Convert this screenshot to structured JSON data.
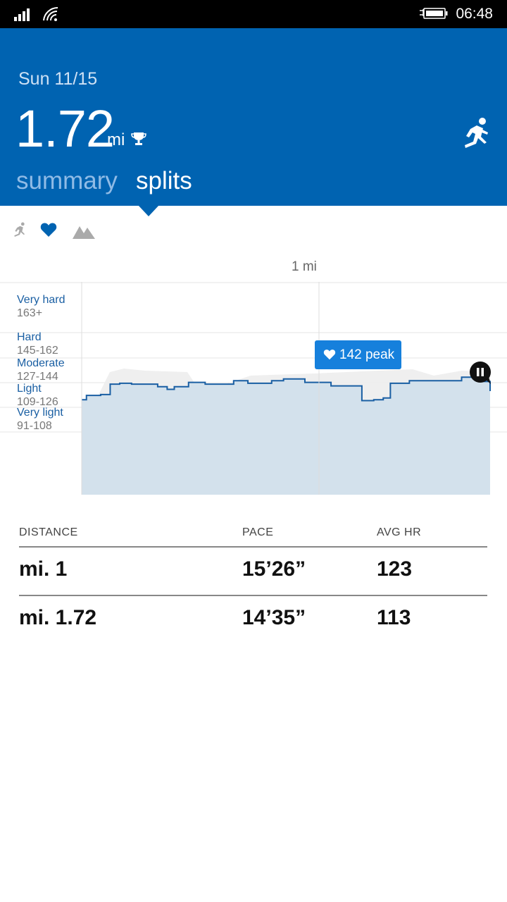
{
  "status_bar": {
    "time": "06:48",
    "signal_icon": "signal-icon",
    "wifi_icon": "wifi-icon",
    "battery_icon": "battery-charging-icon"
  },
  "header": {
    "date": "Sun 11/15",
    "distance": "1.72",
    "unit": "mi",
    "trophy_icon": "trophy-icon",
    "activity_icon": "running-icon",
    "tabs": [
      {
        "label": "summary",
        "active": false
      },
      {
        "label": "splits",
        "active": true
      }
    ]
  },
  "metric_selector": [
    {
      "icon": "pace-icon",
      "selected": false
    },
    {
      "icon": "heart-icon",
      "selected": true
    },
    {
      "icon": "elevation-icon",
      "selected": false
    }
  ],
  "chart": {
    "mile_marker": "1 mi",
    "peak_label": "142 peak",
    "zones": [
      {
        "name": "Very hard",
        "range": "163+"
      },
      {
        "name": "Hard",
        "range": "145-162"
      },
      {
        "name": "Moderate",
        "range": "127-144"
      },
      {
        "name": "Light",
        "range": "109-126"
      },
      {
        "name": "Very light",
        "range": "91-108"
      }
    ],
    "accent_color": "#0063b1"
  },
  "chart_data": {
    "type": "line",
    "x": [
      0,
      0.02,
      0.08,
      0.12,
      0.16,
      0.21,
      0.28,
      0.32,
      0.36,
      0.39,
      0.45,
      0.52,
      0.6,
      0.64,
      0.7,
      0.76,
      0.8,
      0.85,
      0.9,
      0.94,
      0.99,
      1.05,
      1.12,
      1.18,
      1.23,
      1.27,
      1.3,
      1.34,
      1.38,
      1.42,
      1.48,
      1.55,
      1.6,
      1.66,
      1.69,
      1.72
    ],
    "y": [
      116,
      121,
      122,
      134,
      135,
      134,
      134,
      131,
      128,
      131,
      136,
      134,
      134,
      138,
      135,
      135,
      138,
      140,
      140,
      136,
      136,
      132,
      132,
      115,
      116,
      118,
      135,
      135,
      138,
      138,
      138,
      138,
      142,
      138,
      137,
      126
    ],
    "xlabel": "",
    "ylabel": "",
    "grid": true
  },
  "splits_table": {
    "headers": [
      "DISTANCE",
      "PACE",
      "AVG HR"
    ],
    "rows": [
      {
        "distance": "mi. 1",
        "pace": "15’26”",
        "avg_hr": "123"
      },
      {
        "distance": "mi. 1.72",
        "pace": "14’35”",
        "avg_hr": "113"
      }
    ]
  }
}
